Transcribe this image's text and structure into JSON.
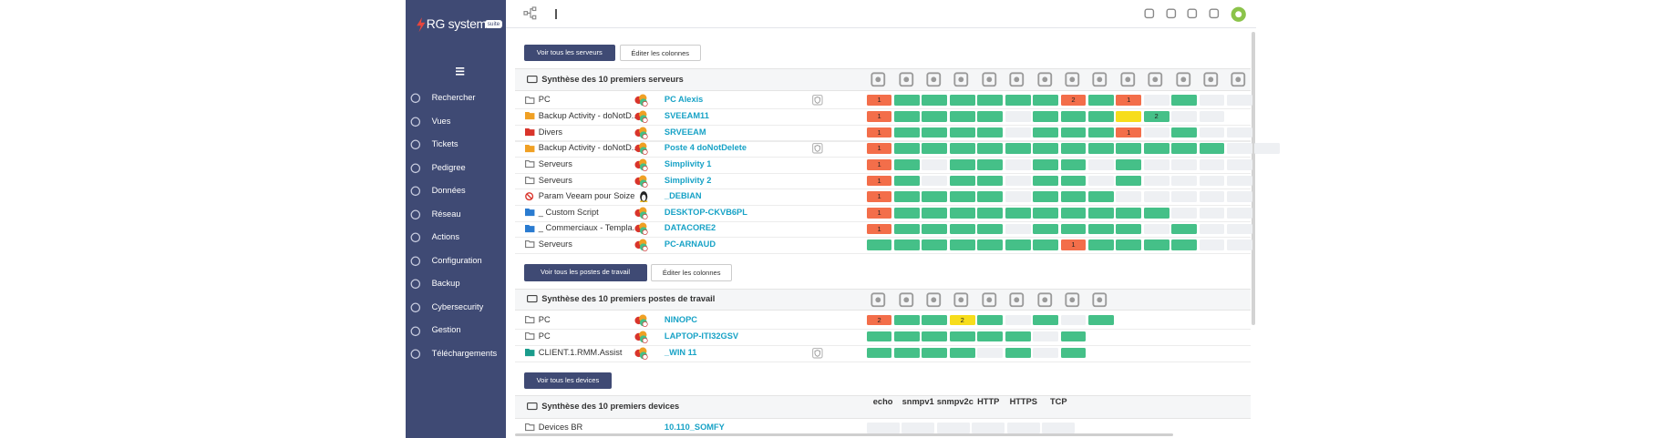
{
  "logo": {
    "brand": "RG system",
    "badge": "suite"
  },
  "sidebar": {
    "menu": [
      {
        "label": "Rechercher",
        "arrow": false
      },
      {
        "label": "Vues",
        "arrow": true
      },
      {
        "label": "Tickets",
        "arrow": false
      },
      {
        "label": "Pedigree",
        "arrow": false
      },
      {
        "label": "Données",
        "arrow": true
      },
      {
        "label": "Réseau",
        "arrow": true
      },
      {
        "label": "Actions",
        "arrow": true
      },
      {
        "label": "Configuration",
        "arrow": true
      },
      {
        "label": "Backup",
        "arrow": true
      },
      {
        "label": "Cybersecurity",
        "arrow": true
      },
      {
        "label": "Gestion",
        "arrow": true
      },
      {
        "label": "Téléchargements",
        "arrow": true
      }
    ]
  },
  "servers": {
    "buttons": [
      "Voir tous les serveurs",
      "Éditer les colonnes"
    ],
    "title": "Synthèse des 10 premiers serveurs",
    "rows": [
      {
        "group": "PC",
        "folder": "grey",
        "os": "windows",
        "name": "PC Alexis",
        "shield": true,
        "status": "rggggggrgregee",
        "labels": {
          "0": 1,
          "7": 2,
          "9": 1
        }
      },
      {
        "group": "Backup Activity - doNotD...",
        "folder": "orange",
        "os": "windows",
        "name": "SVEEAM11",
        "shield": false,
        "status": "rggggegggygee",
        "labels": {
          "0": 1,
          "10": 2
        }
      },
      {
        "group": "Divers",
        "folder": "red",
        "os": "windows",
        "name": "SRVEEAM",
        "shield": false,
        "status": "rggggegggregee",
        "labels": {
          "0": 1,
          "9": 1
        }
      },
      {
        "group": "Backup Activity - doNotD...",
        "folder": "orange",
        "os": "windows",
        "name": "Poste 4 doNotDelete",
        "shield": true,
        "status": "rggggggggggggee",
        "labels": {
          "0": 1
        }
      },
      {
        "group": "Serveurs",
        "folder": "grey",
        "os": "windows",
        "name": "Simplivity 1",
        "shield": false,
        "status": "rgeggeggegeeee",
        "labels": {
          "0": 1
        }
      },
      {
        "group": "Serveurs",
        "folder": "grey",
        "os": "windows",
        "name": "Simplivity 2",
        "shield": false,
        "status": "rgeggeggegeeee",
        "labels": {
          "0": 1
        }
      },
      {
        "group": "Param Veeam pour Soize",
        "folder": "forbidden",
        "os": "linux",
        "name": "_DEBIAN",
        "shield": false,
        "status": "rggggegggeeeee",
        "labels": {
          "0": 1
        }
      },
      {
        "group": "_ Custom Script",
        "folder": "blue",
        "os": "windows",
        "name": "DESKTOP-CKVB6PL",
        "shield": false,
        "status": "rggggggggggeee",
        "labels": {
          "0": 1
        }
      },
      {
        "group": "_ Commerciaux - Templa...",
        "folder": "blue",
        "os": "windows",
        "name": "DATACORE2",
        "shield": false,
        "status": "rggggeggggegee",
        "labels": {
          "0": 1
        }
      },
      {
        "group": "Serveurs",
        "folder": "grey",
        "os": "windows",
        "name": "PC-ARNAUD",
        "shield": false,
        "status": "gggggggrggggee",
        "labels": {
          "7": 1
        }
      }
    ]
  },
  "workstations": {
    "buttons": [
      "Voir tous les postes de travail",
      "Éditer les colonnes"
    ],
    "title": "Synthèse des 10 premiers postes de travail",
    "rows": [
      {
        "group": "PC",
        "folder": "grey",
        "os": "windows",
        "name": "NINOPC",
        "shield": false,
        "status": "rggygegeg",
        "labels": {
          "0": 2,
          "3": 2
        }
      },
      {
        "group": "PC",
        "folder": "grey",
        "os": "windows",
        "name": "LAPTOP-ITI32GSV",
        "shield": false,
        "status": "ggggggeg",
        "labels": {}
      },
      {
        "group": "CLIENT.1.RMM.Assist",
        "folder": "teal",
        "os": "windows",
        "name": "_WIN 11",
        "shield": true,
        "status": "ggggegeg",
        "labels": {}
      }
    ]
  },
  "devices": {
    "buttons": [
      "Voir tous les devices"
    ],
    "title": "Synthèse des 10 premiers devices",
    "columns": [
      "echo",
      "snmpv1",
      "snmpv2c",
      "HTTP",
      "HTTPS",
      "TCP"
    ],
    "rows": [
      {
        "group": "Devices BR",
        "folder": "grey",
        "name": "10.110_SOMFY"
      }
    ]
  }
}
